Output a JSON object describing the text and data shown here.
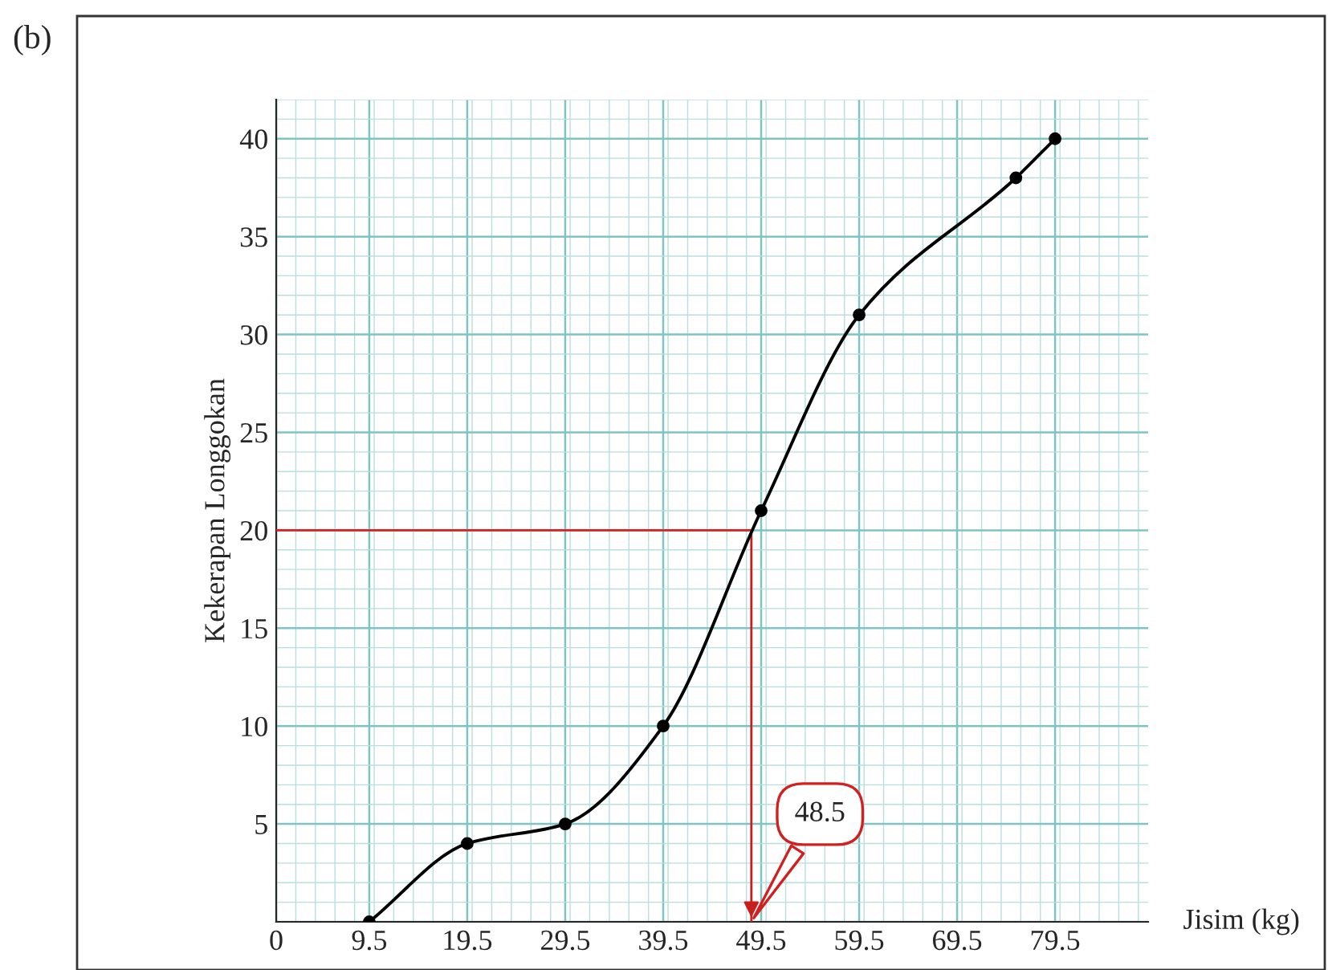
{
  "chart_data": {
    "type": "line",
    "title": "(b)",
    "xlabel": "Jisim (kg)",
    "ylabel": "Kekerapan Longgokan",
    "x": [
      9.5,
      19.5,
      29.5,
      39.5,
      49.5,
      59.5,
      75.5,
      79.5
    ],
    "series": [
      {
        "color": "#000000",
        "values": [
          0,
          4,
          5,
          10,
          21,
          31,
          38,
          40
        ]
      }
    ],
    "marker": "circle",
    "line_style": "solid",
    "xlim": [
      0,
      89
    ],
    "ylim": [
      0,
      42
    ],
    "xticks": [
      0,
      9.5,
      19.5,
      29.5,
      39.5,
      49.5,
      59.5,
      69.5,
      79.5
    ],
    "yticks": [
      {
        "value": 0,
        "label": null
      },
      5,
      10,
      15,
      20,
      25,
      30,
      35,
      40
    ],
    "grid": true,
    "ref_lines": [
      {
        "axis": "y",
        "value": 20,
        "color": "#e02020"
      },
      {
        "axis": "x",
        "value": 48.5,
        "color": "#c81e1e"
      }
    ],
    "annotations": [
      "48.5"
    ]
  }
}
